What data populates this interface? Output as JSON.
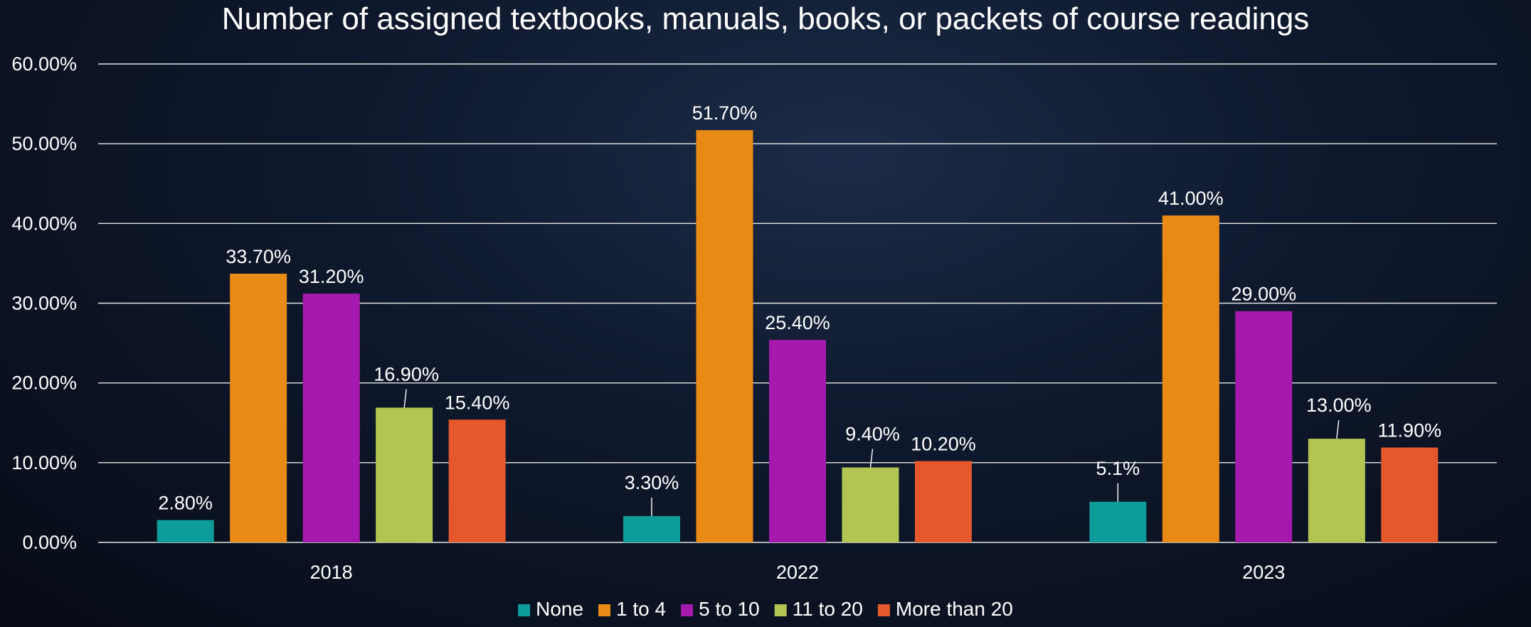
{
  "chart_data": {
    "type": "bar",
    "title": "Number of assigned textbooks, manuals, books, or packets of course readings",
    "xlabel": "",
    "ylabel": "",
    "ylim": [
      0,
      60
    ],
    "y_ticks": [
      "0.00%",
      "10.00%",
      "20.00%",
      "30.00%",
      "40.00%",
      "50.00%",
      "60.00%"
    ],
    "grid": true,
    "legend_position": "bottom",
    "categories": [
      "2018",
      "2022",
      "2023"
    ],
    "series": [
      {
        "name": "None",
        "color": "#0e9c9a",
        "values": [
          2.8,
          3.3,
          5.1
        ],
        "labels": [
          "2.80%",
          "3.30%",
          "5.1%"
        ]
      },
      {
        "name": "1 to 4",
        "color": "#e98a17",
        "values": [
          33.7,
          51.7,
          41.0
        ],
        "labels": [
          "33.70%",
          "51.70%",
          "41.00%"
        ]
      },
      {
        "name": "5 to 10",
        "color": "#a519ad",
        "values": [
          31.2,
          25.4,
          29.0
        ],
        "labels": [
          "31.20%",
          "25.40%",
          "29.00%"
        ]
      },
      {
        "name": "11 to 20",
        "color": "#b2c553",
        "values": [
          16.9,
          9.4,
          13.0
        ],
        "labels": [
          "16.90%",
          "9.40%",
          "13.00%"
        ]
      },
      {
        "name": "More than 20",
        "color": "#e5582c",
        "values": [
          15.4,
          10.2,
          11.9
        ],
        "labels": [
          "15.40%",
          "10.20%",
          "11.90%"
        ]
      }
    ]
  }
}
